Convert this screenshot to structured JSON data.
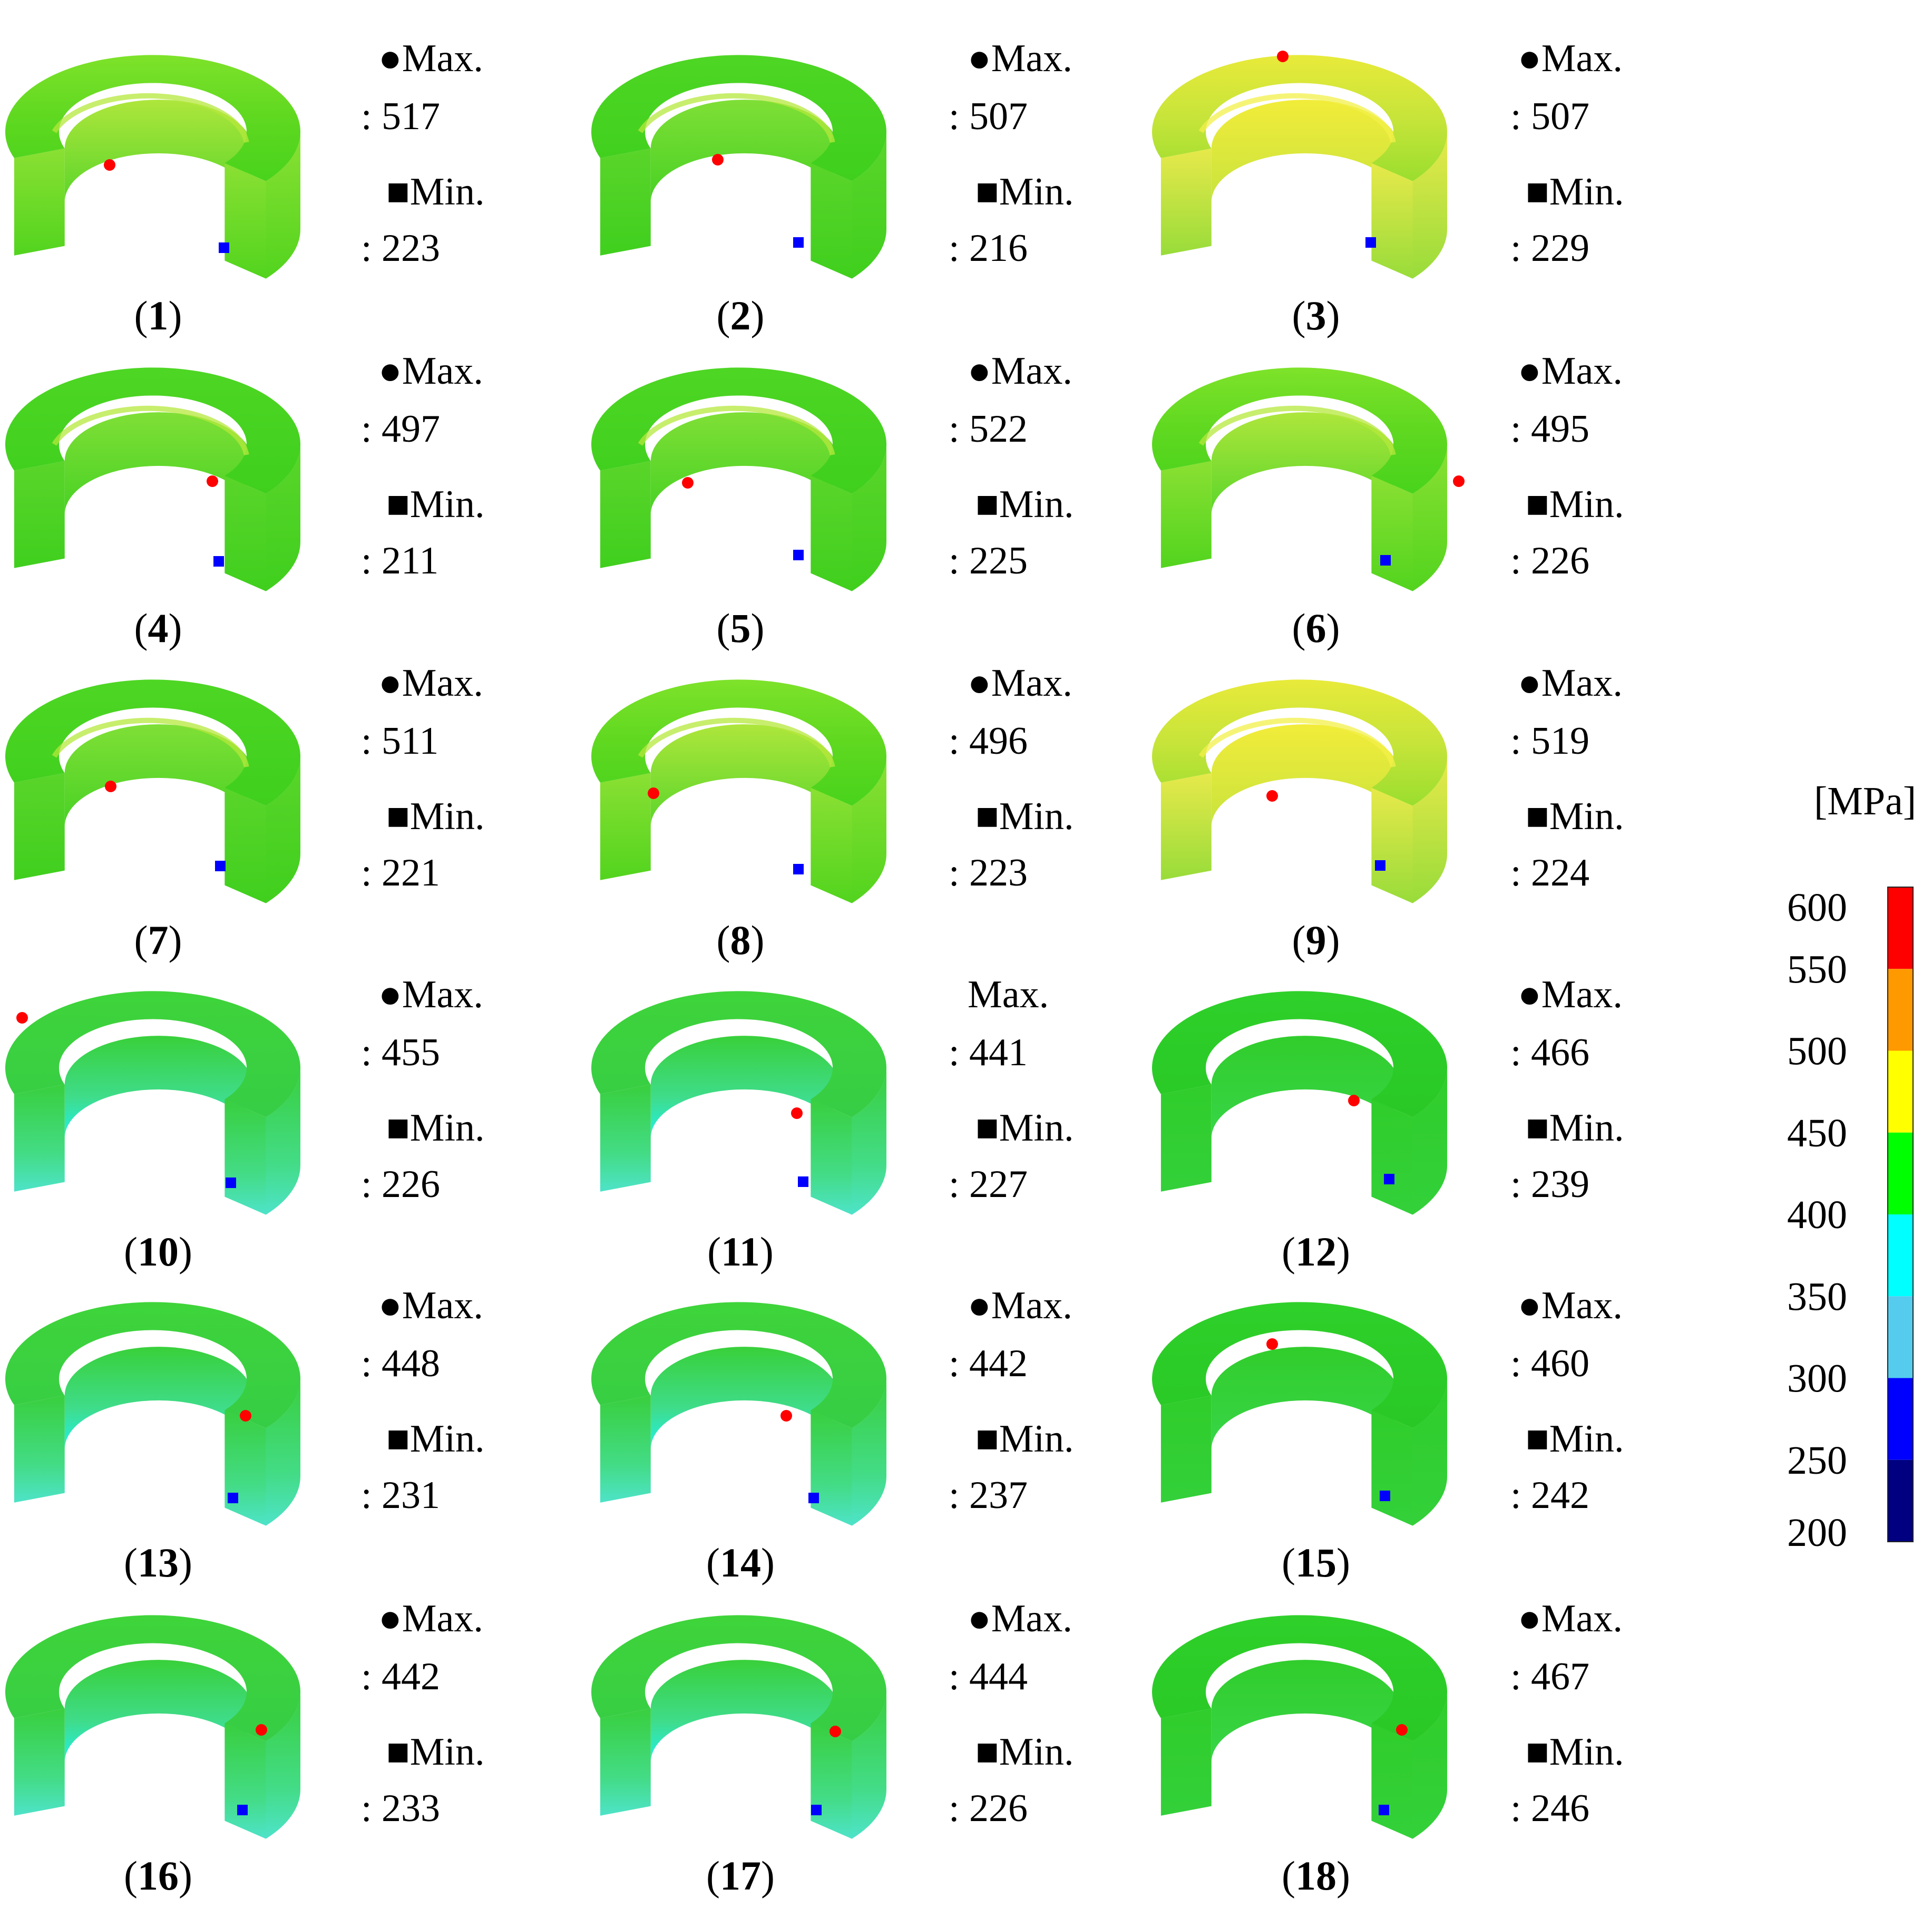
{
  "legend": {
    "unit": "[MPa]",
    "ticks": [
      600,
      550,
      500,
      450,
      400,
      350,
      300,
      250,
      200
    ],
    "bands": [
      {
        "from": 550,
        "to": 600,
        "color": "#ff0000"
      },
      {
        "from": 500,
        "to": 550,
        "color": "#ff9900"
      },
      {
        "from": 450,
        "to": 500,
        "color": "#ffff00"
      },
      {
        "from": 400,
        "to": 450,
        "color": "#00ff00"
      },
      {
        "from": 350,
        "to": 400,
        "color": "#00ffff"
      },
      {
        "from": 300,
        "to": 350,
        "color": "#55ccee"
      },
      {
        "from": 250,
        "to": 300,
        "color": "#0000ff"
      },
      {
        "from": 200,
        "to": 250,
        "color": "#000080"
      }
    ]
  },
  "panels": [
    {
      "id": "1",
      "max_label": "●Max.",
      "max_value": ": 517",
      "min_label": "■Min.",
      "min_value": ": 223",
      "caption_open": "(",
      "caption_num": "1",
      "caption_close": ")",
      "tint": "yellow-green"
    },
    {
      "id": "2",
      "max_label": "●Max.",
      "max_value": ": 507",
      "min_label": "■Min.",
      "min_value": ": 216",
      "caption_open": "(",
      "caption_num": "2",
      "caption_close": ")",
      "tint": "green"
    },
    {
      "id": "3",
      "max_label": "●Max.",
      "max_value": ": 507",
      "min_label": "■Min.",
      "min_value": ": 229",
      "caption_open": "(",
      "caption_num": "3",
      "caption_close": ")",
      "tint": "yellow"
    },
    {
      "id": "4",
      "max_label": "●Max.",
      "max_value": ": 497",
      "min_label": "■Min.",
      "min_value": ": 211",
      "caption_open": "(",
      "caption_num": "4",
      "caption_close": ")",
      "tint": "green"
    },
    {
      "id": "5",
      "max_label": "●Max.",
      "max_value": ": 522",
      "min_label": "■Min.",
      "min_value": ": 225",
      "caption_open": "(",
      "caption_num": "5",
      "caption_close": ")",
      "tint": "green"
    },
    {
      "id": "6",
      "max_label": "●Max.",
      "max_value": ": 495",
      "min_label": "■Min.",
      "min_value": ": 226",
      "caption_open": "(",
      "caption_num": "6",
      "caption_close": ")",
      "tint": "yellow-green"
    },
    {
      "id": "7",
      "max_label": "●Max.",
      "max_value": ": 511",
      "min_label": "■Min.",
      "min_value": ": 221",
      "caption_open": "(",
      "caption_num": "7",
      "caption_close": ")",
      "tint": "green"
    },
    {
      "id": "8",
      "max_label": "●Max.",
      "max_value": ": 496",
      "min_label": "■Min.",
      "min_value": ": 223",
      "caption_open": "(",
      "caption_num": "8",
      "caption_close": ")",
      "tint": "yellow-green"
    },
    {
      "id": "9",
      "max_label": "●Max.",
      "max_value": ": 519",
      "min_label": "■Min.",
      "min_value": ": 224",
      "caption_open": "(",
      "caption_num": "9",
      "caption_close": ")",
      "tint": "yellow"
    },
    {
      "id": "10",
      "max_label": "●Max.",
      "max_value": ": 455",
      "min_label": "■Min.",
      "min_value": ": 226",
      "caption_open": "(",
      "caption_num": "10",
      "caption_close": ")",
      "tint": "cyan-green"
    },
    {
      "id": "11",
      "max_label": "Max.",
      "max_value": ": 441",
      "min_label": "■Min.",
      "min_value": ": 227",
      "caption_open": "(",
      "caption_num": "11",
      "caption_close": ")",
      "tint": "cyan-green"
    },
    {
      "id": "12",
      "max_label": "●Max.",
      "max_value": ": 466",
      "min_label": "■Min.",
      "min_value": ": 239",
      "caption_open": "(",
      "caption_num": "12",
      "caption_close": ")",
      "tint": "pure-green"
    },
    {
      "id": "13",
      "max_label": "●Max.",
      "max_value": ": 448",
      "min_label": "■Min.",
      "min_value": ": 231",
      "caption_open": "(",
      "caption_num": "13",
      "caption_close": ")",
      "tint": "cyan-green"
    },
    {
      "id": "14",
      "max_label": "●Max.",
      "max_value": ": 442",
      "min_label": "■Min.",
      "min_value": ": 237",
      "caption_open": "(",
      "caption_num": "14",
      "caption_close": ")",
      "tint": "cyan-green"
    },
    {
      "id": "15",
      "max_label": "●Max.",
      "max_value": ": 460",
      "min_label": "■Min.",
      "min_value": ": 242",
      "caption_open": "(",
      "caption_num": "15",
      "caption_close": ")",
      "tint": "pure-green"
    },
    {
      "id": "16",
      "max_label": "●Max.",
      "max_value": ": 442",
      "min_label": "■Min.",
      "min_value": ": 233",
      "caption_open": "(",
      "caption_num": "16",
      "caption_close": ")",
      "tint": "cyan-green"
    },
    {
      "id": "17",
      "max_label": "●Max.",
      "max_value": ": 444",
      "min_label": "■Min.",
      "min_value": ": 226",
      "caption_open": "(",
      "caption_num": "17",
      "caption_close": ")",
      "tint": "cyan-green"
    },
    {
      "id": "18",
      "max_label": "●Max.",
      "max_value": ": 467",
      "min_label": "■Min.",
      "min_value": ": 246",
      "caption_open": "(",
      "caption_num": "18",
      "caption_close": ")",
      "tint": "pure-green"
    }
  ],
  "marker_colors": {
    "max": "#ff0000",
    "min": "#0000ff"
  }
}
